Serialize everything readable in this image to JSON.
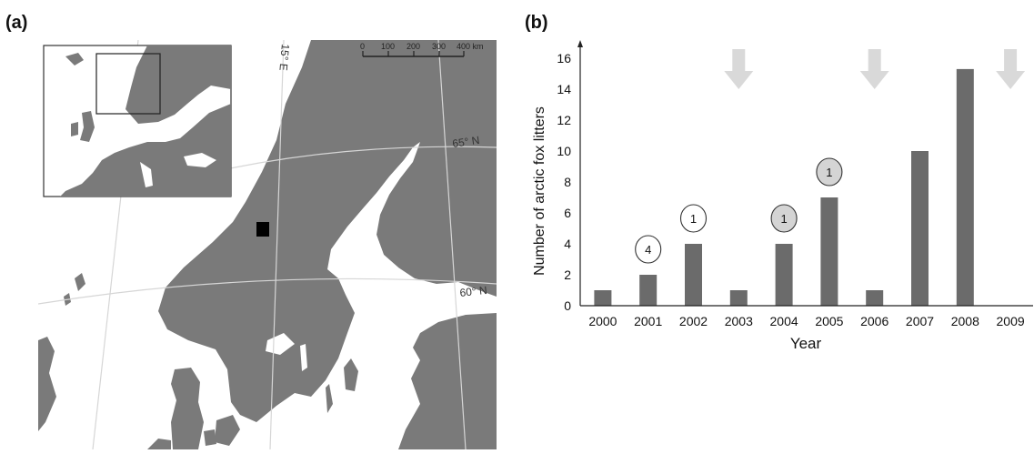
{
  "panels": {
    "a_label": "(a)",
    "b_label": "(b)"
  },
  "map": {
    "meridian_label": "15° E",
    "lat_label_65": "65° N",
    "lat_label_60": "60° N",
    "scale_ticks": [
      "0",
      "100",
      "200",
      "300",
      "400 km"
    ],
    "colors": {
      "land": "#7a7a7a",
      "sea": "#ffffff",
      "grid": "#d6d6d6"
    }
  },
  "chart_data": {
    "type": "bar",
    "categories": [
      "2000",
      "2001",
      "2002",
      "2003",
      "2004",
      "2005",
      "2006",
      "2007",
      "2008",
      "2009"
    ],
    "values": [
      1,
      2,
      4,
      1,
      4,
      7,
      1,
      10,
      15.3,
      0
    ],
    "xlabel": "Year",
    "ylabel": "Number of arctic fox litters",
    "ylim": [
      0,
      16
    ],
    "yticks": [
      0,
      2,
      4,
      6,
      8,
      10,
      12,
      14,
      16
    ],
    "grid": false,
    "bar_color": "#6b6b6b",
    "annotations": [
      {
        "year": "2001",
        "text": "4",
        "style": "open"
      },
      {
        "year": "2002",
        "text": "1",
        "style": "open"
      },
      {
        "year": "2004",
        "text": "1",
        "style": "filled"
      },
      {
        "year": "2005",
        "text": "1",
        "style": "filled"
      }
    ],
    "arrow_years": [
      "2003",
      "2006",
      "2009"
    ],
    "arrow_color": "#d9d9d9"
  }
}
